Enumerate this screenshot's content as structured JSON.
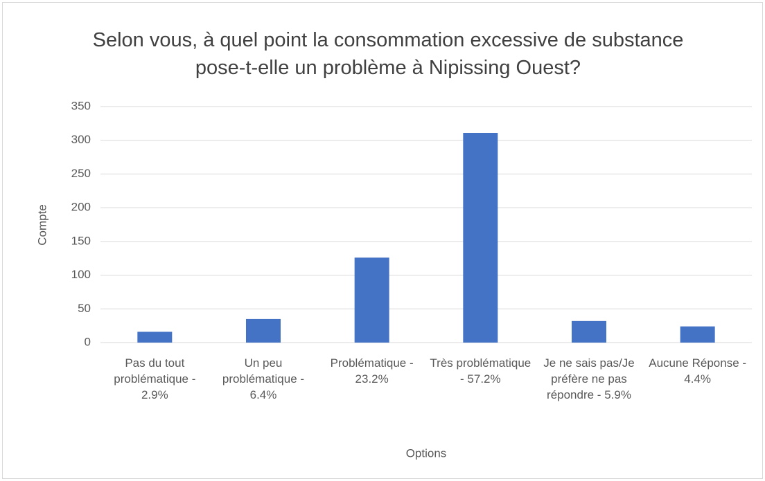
{
  "chart_data": {
    "type": "bar",
    "title": "Selon vous, à quel point la consommation excessive de substance pose-t-elle un problème à Nipissing Ouest?",
    "x_label": "Options",
    "y_label": "Compte",
    "categories": [
      "Pas du tout problématique - 2.9%",
      "Un peu problématique - 6.4%",
      "Problématique - 23.2%",
      "Très problématique - 57.2%",
      "Je ne sais pas/Je préfère ne pas répondre - 5.9%",
      "Aucune Réponse - 4.4%"
    ],
    "values": [
      16,
      35,
      126,
      311,
      32,
      24
    ],
    "color": "#4472c4",
    "ylim": [
      0,
      350
    ],
    "yticks": [
      0,
      50,
      100,
      150,
      200,
      250,
      300,
      350
    ],
    "grid": true
  }
}
